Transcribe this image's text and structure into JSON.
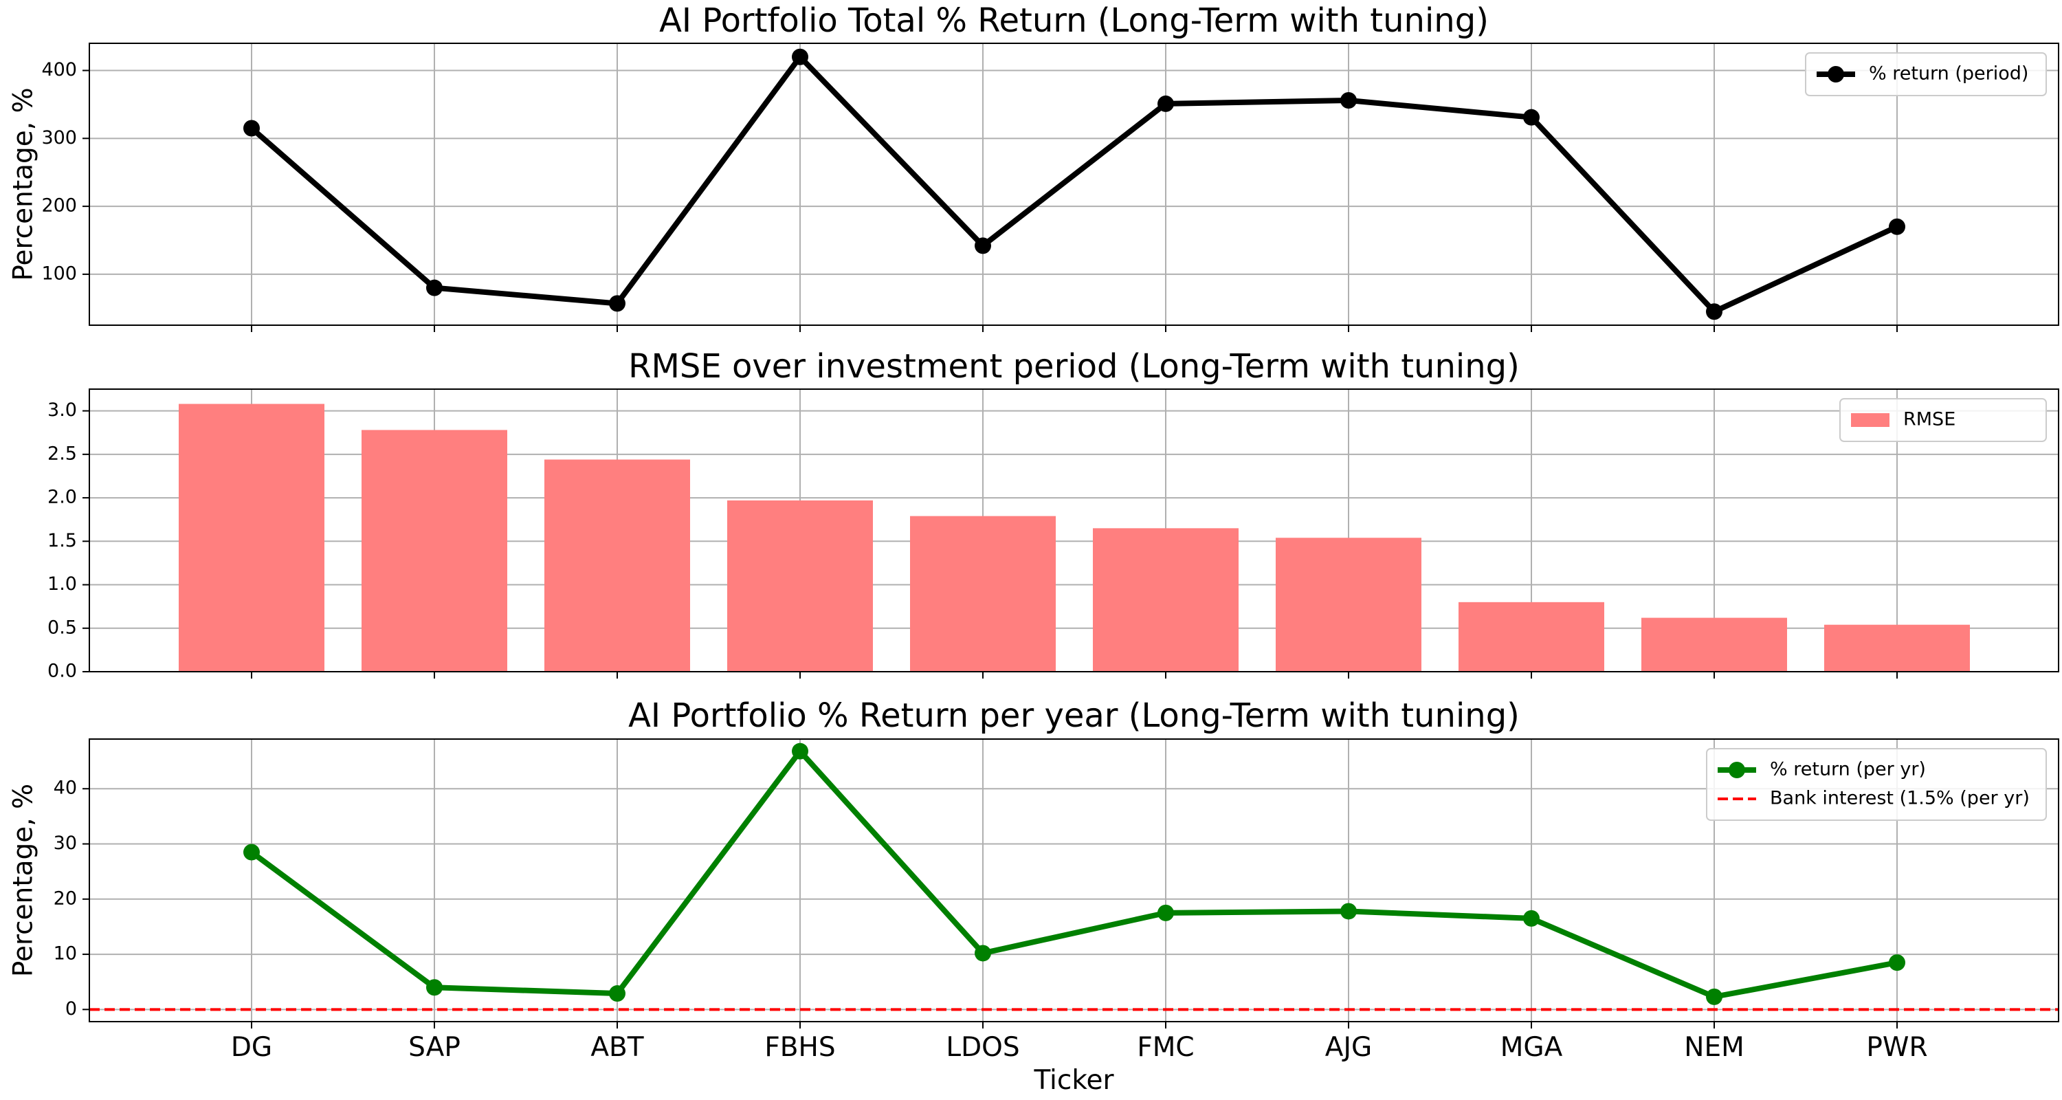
{
  "chart_data": [
    {
      "type": "line",
      "title": "AI Portfolio Total % Return (Long-Term with tuning)",
      "xlabel": "",
      "ylabel": "Percentage, %",
      "categories": [
        "DG",
        "SAP",
        "ABT",
        "FBHS",
        "LDOS",
        "FMC",
        "AJG",
        "MGA",
        "NEM",
        "PWR"
      ],
      "ylim": [
        25,
        440
      ],
      "yticks": [
        100,
        200,
        300,
        400
      ],
      "grid": true,
      "legend_position": "top-right",
      "series": [
        {
          "name": "% return (period)",
          "color": "#000000",
          "marker": "circle",
          "values": [
            315,
            80,
            57,
            420,
            142,
            351,
            356,
            331,
            45,
            170
          ]
        }
      ]
    },
    {
      "type": "bar",
      "title": "RMSE over investment period (Long-Term with tuning)",
      "xlabel": "",
      "ylabel": "",
      "categories": [
        "DG",
        "SAP",
        "ABT",
        "FBHS",
        "LDOS",
        "FMC",
        "AJG",
        "MGA",
        "NEM",
        "PWR"
      ],
      "ylim": [
        0,
        3.25
      ],
      "yticks": [
        0.0,
        0.5,
        1.0,
        1.5,
        2.0,
        2.5,
        3.0
      ],
      "ytick_labels": [
        "0.0",
        "0.5",
        "1.0",
        "1.5",
        "2.0",
        "2.5",
        "3.0"
      ],
      "grid": true,
      "legend_position": "top-right",
      "series": [
        {
          "name": "RMSE",
          "color": "#ff7f7f",
          "values": [
            3.08,
            2.78,
            2.44,
            1.97,
            1.79,
            1.65,
            1.54,
            0.8,
            0.62,
            0.54
          ]
        }
      ]
    },
    {
      "type": "line",
      "title": "AI Portfolio % Return per year (Long-Term with tuning)",
      "xlabel": "Ticker",
      "ylabel": "Percentage, %",
      "categories": [
        "DG",
        "SAP",
        "ABT",
        "FBHS",
        "LDOS",
        "FMC",
        "AJG",
        "MGA",
        "NEM",
        "PWR"
      ],
      "ylim": [
        -2.2,
        49
      ],
      "yticks": [
        0,
        10,
        20,
        30,
        40
      ],
      "grid": true,
      "legend_position": "top-right",
      "series": [
        {
          "name": "% return (per yr)",
          "color": "#008000",
          "marker": "circle",
          "values": [
            28.5,
            4.0,
            2.9,
            46.8,
            10.2,
            17.5,
            17.8,
            16.5,
            2.3,
            8.5
          ]
        },
        {
          "name": "Bank interest (1.5% (per yr)",
          "color": "#ff0000",
          "style": "dashed",
          "value": 0
        }
      ]
    }
  ]
}
